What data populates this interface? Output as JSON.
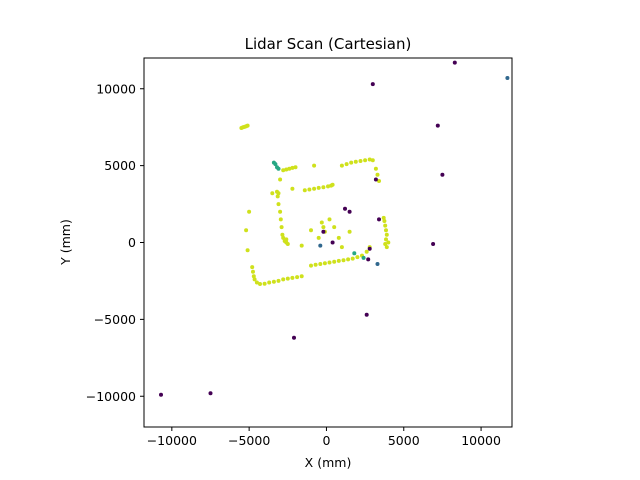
{
  "chart_data": {
    "type": "scatter",
    "title": "Lidar Scan (Cartesian)",
    "xlabel": "X (mm)",
    "ylabel": "Y (mm)",
    "xlim": [
      -11800,
      12000
    ],
    "ylim": [
      -12000,
      12000
    ],
    "xticks": [
      -10000,
      -5000,
      0,
      5000,
      10000
    ],
    "yticks": [
      -10000,
      -5000,
      0,
      5000,
      10000
    ],
    "xtick_labels": [
      "−10000",
      "−5000",
      "0",
      "5000",
      "10000"
    ],
    "ytick_labels": [
      "−10000",
      "−5000",
      "0",
      "5000",
      "10000"
    ],
    "grid": false,
    "colormap": "viridis",
    "colors": {
      "low": "#440154",
      "mid_low": "#31688e",
      "mid": "#26a784",
      "high": "#bddf26",
      "top": "#dde318"
    },
    "series": [
      {
        "color": "#cfe11c",
        "points": [
          [
            -5500,
            7450
          ],
          [
            -5400,
            7500
          ],
          [
            -5300,
            7520
          ],
          [
            -5200,
            7560
          ],
          [
            -5100,
            7600
          ],
          [
            -2800,
            4700
          ],
          [
            -2600,
            4750
          ],
          [
            -2400,
            4800
          ],
          [
            -2200,
            4850
          ],
          [
            -2000,
            4900
          ],
          [
            -3200,
            3300
          ],
          [
            -3100,
            3200
          ],
          [
            -3150,
            3000
          ],
          [
            -3100,
            2500
          ],
          [
            -3000,
            2000
          ],
          [
            -2950,
            1500
          ],
          [
            -2900,
            1000
          ],
          [
            -2850,
            500
          ],
          [
            -2800,
            300
          ],
          [
            -2700,
            100
          ],
          [
            -2600,
            0
          ],
          [
            -2500,
            -100
          ],
          [
            -2600,
            200
          ],
          [
            -4800,
            -1600
          ],
          [
            -4750,
            -1900
          ],
          [
            -4700,
            -2200
          ],
          [
            -4650,
            -2400
          ],
          [
            -4500,
            -2600
          ],
          [
            -4300,
            -2700
          ],
          [
            -4000,
            -2680
          ],
          [
            -3700,
            -2600
          ],
          [
            -3400,
            -2550
          ],
          [
            -3100,
            -2500
          ],
          [
            -2800,
            -2400
          ],
          [
            -2500,
            -2350
          ],
          [
            -2200,
            -2300
          ],
          [
            -1900,
            -2250
          ],
          [
            -1600,
            -2200
          ],
          [
            -1000,
            -1500
          ],
          [
            -700,
            -1450
          ],
          [
            -400,
            -1400
          ],
          [
            -100,
            -1350
          ],
          [
            200,
            -1300
          ],
          [
            500,
            -1250
          ],
          [
            800,
            -1200
          ],
          [
            1100,
            -1150
          ],
          [
            1400,
            -1100
          ],
          [
            1700,
            -1050
          ],
          [
            2000,
            -950
          ],
          [
            2300,
            -850
          ],
          [
            2600,
            -600
          ],
          [
            2800,
            -300
          ],
          [
            3800,
            -100
          ],
          [
            3850,
            200
          ],
          [
            3900,
            500
          ],
          [
            3850,
            800
          ],
          [
            3800,
            1100
          ],
          [
            3750,
            1400
          ],
          [
            3700,
            1600
          ],
          [
            3900,
            -300
          ],
          [
            4000,
            0
          ],
          [
            -1400,
            3400
          ],
          [
            -1100,
            3450
          ],
          [
            -800,
            3500
          ],
          [
            -500,
            3550
          ],
          [
            -200,
            3600
          ],
          [
            100,
            3650
          ],
          [
            300,
            3700
          ],
          [
            400,
            3750
          ],
          [
            1000,
            5000
          ],
          [
            1300,
            5100
          ],
          [
            1600,
            5200
          ],
          [
            1900,
            5250
          ],
          [
            2200,
            5300
          ],
          [
            2500,
            5350
          ],
          [
            2800,
            5400
          ],
          [
            3000,
            5350
          ],
          [
            3200,
            4800
          ],
          [
            3300,
            4400
          ],
          [
            3400,
            4000
          ],
          [
            -5000,
            2000
          ],
          [
            -5200,
            800
          ],
          [
            -5100,
            -500
          ],
          [
            -3500,
            3200
          ],
          [
            -3000,
            4100
          ],
          [
            -2200,
            3500
          ],
          [
            -800,
            5000
          ],
          [
            -300,
            1300
          ],
          [
            -200,
            1000
          ],
          [
            -100,
            700
          ],
          [
            200,
            1500
          ],
          [
            500,
            1000
          ],
          [
            800,
            300
          ],
          [
            1000,
            -300
          ],
          [
            -1000,
            800
          ],
          [
            -500,
            300
          ],
          [
            1500,
            700
          ],
          [
            -1600,
            -200
          ]
        ]
      },
      {
        "color": "#26a784",
        "points": [
          [
            -3400,
            5200
          ],
          [
            -3300,
            5100
          ],
          [
            -3200,
            4900
          ],
          [
            -3100,
            4800
          ],
          [
            1800,
            -700
          ],
          [
            2400,
            -1000
          ]
        ]
      },
      {
        "color": "#31688e",
        "points": [
          [
            11700,
            10700
          ],
          [
            3300,
            -1400
          ],
          [
            -400,
            -200
          ]
        ]
      },
      {
        "color": "#440154",
        "points": [
          [
            8300,
            11700
          ],
          [
            3000,
            10300
          ],
          [
            7200,
            7600
          ],
          [
            7500,
            4400
          ],
          [
            3200,
            4100
          ],
          [
            1200,
            2200
          ],
          [
            1500,
            2000
          ],
          [
            3400,
            1500
          ],
          [
            -200,
            700
          ],
          [
            400,
            0
          ],
          [
            2800,
            -400
          ],
          [
            2700,
            -1100
          ],
          [
            6900,
            -100
          ],
          [
            2600,
            -4700
          ],
          [
            -2100,
            -6200
          ],
          [
            -10700,
            -9900
          ],
          [
            -7500,
            -9800
          ]
        ]
      }
    ]
  }
}
